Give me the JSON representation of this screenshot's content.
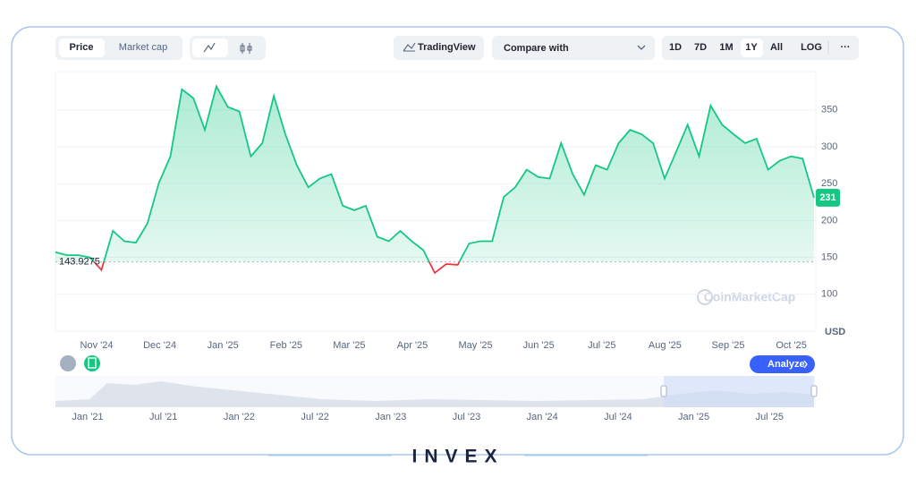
{
  "ui": {
    "tabs": [
      "Price",
      "Market cap"
    ],
    "tradingview": "TradingView",
    "compare": "Compare with",
    "ranges": [
      "1D",
      "7D",
      "1M",
      "1Y",
      "All",
      "LOG"
    ],
    "more": "···",
    "analyze": "Analyze",
    "watermark": "CoinMarketCap",
    "logo": "INVEX",
    "navigator_labels": [
      "Jan '21",
      "Jul '21",
      "Jan '22",
      "Jul '22",
      "Jan '23",
      "Jul '23",
      "Jan '24",
      "Jul '24",
      "Jan '25",
      "Jul '25"
    ]
  },
  "chart_data": {
    "type": "line",
    "x_labels": [
      "Nov '24",
      "Dec '24",
      "Jan '25",
      "Feb '25",
      "Mar '25",
      "Apr '25",
      "May '25",
      "Jun '25",
      "Jul '25",
      "Aug '25",
      "Sep '25",
      "Oct '25"
    ],
    "values": [
      157,
      153,
      153,
      150,
      133,
      186,
      172,
      170,
      196,
      251,
      287,
      378,
      366,
      323,
      382,
      354,
      348,
      287,
      305,
      369,
      317,
      275,
      245,
      257,
      263,
      220,
      214,
      220,
      178,
      172,
      186,
      172,
      160,
      129,
      141,
      140,
      169,
      172,
      172,
      232,
      245,
      269,
      259,
      257,
      305,
      263,
      235,
      275,
      269,
      305,
      323,
      317,
      305,
      257,
      293,
      330,
      287,
      356,
      330,
      317,
      305,
      311,
      269,
      281,
      287,
      284,
      231
    ],
    "baseline": 143.9275,
    "color": "#16c784",
    "below_color": "#ea3943",
    "ylim": [
      50,
      402
    ],
    "yticks": [
      100,
      150,
      200,
      250,
      300,
      350
    ],
    "y_unit": "USD",
    "grid": true
  }
}
